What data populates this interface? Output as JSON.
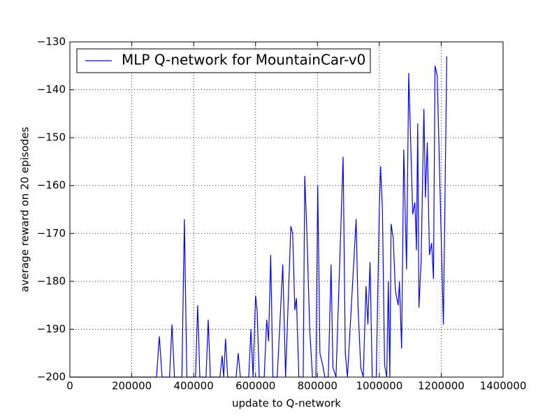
{
  "chart_data": {
    "type": "line",
    "xlabel": "update to Q-network",
    "ylabel": "average reward on 20 episodes",
    "xlim": [
      0,
      1400000
    ],
    "ylim": [
      -200,
      -130
    ],
    "xticks": [
      0,
      200000,
      400000,
      600000,
      800000,
      1000000,
      1200000,
      1400000
    ],
    "yticks": [
      {
        "value": -200,
        "label": "−200"
      },
      {
        "value": -190,
        "label": "−190"
      },
      {
        "value": -180,
        "label": "−180"
      },
      {
        "value": -170,
        "label": "−170"
      },
      {
        "value": -160,
        "label": "−160"
      },
      {
        "value": -150,
        "label": "−150"
      },
      {
        "value": -140,
        "label": "−140"
      },
      {
        "value": -130,
        "label": "−130"
      }
    ],
    "grid": true,
    "legend": "upper left",
    "x": [
      0,
      280000,
      289000,
      298000,
      322000,
      330000,
      338000,
      362000,
      370000,
      378000,
      406000,
      413000,
      420000,
      440000,
      447000,
      454000,
      485000,
      492000,
      497000,
      503000,
      510000,
      537000,
      544000,
      551000,
      578000,
      585000,
      592000,
      600000,
      605000,
      612000,
      628000,
      636000,
      642000,
      649000,
      656000,
      670000,
      677000,
      688000,
      697000,
      714000,
      720000,
      727000,
      732000,
      740000,
      754000,
      759000,
      766000,
      775000,
      784000,
      795000,
      801000,
      808000,
      817000,
      824000,
      835000,
      844000,
      850000,
      860000,
      883000,
      890000,
      897000,
      925000,
      931000,
      940000,
      948000,
      957000,
      963000,
      970000,
      977000,
      990000,
      1000000,
      1004000,
      1010000,
      1017000,
      1024000,
      1029000,
      1034000,
      1038000,
      1045000,
      1052000,
      1061000,
      1065000,
      1072000,
      1079000,
      1088000,
      1095000,
      1101000,
      1108000,
      1115000,
      1120000,
      1124000,
      1128000,
      1135000,
      1144000,
      1149000,
      1155000,
      1162000,
      1169000,
      1175000,
      1180000,
      1187000,
      1194000,
      1200000,
      1207000,
      1218000
    ],
    "series": [
      {
        "name": "MLP Q-network for MountainCar-v0",
        "color": "#0000ff",
        "values": [
          -200,
          -200,
          -191.5,
          -200,
          -200,
          -189,
          -200,
          -200,
          -167,
          -200,
          -200,
          -185,
          -200,
          -200,
          -188,
          -200,
          -200,
          -195.5,
          -200,
          -192,
          -200,
          -200,
          -195,
          -200,
          -200,
          -190,
          -200,
          -183,
          -186,
          -200,
          -200,
          -188,
          -192.5,
          -174.5,
          -200,
          -200,
          -191,
          -176.5,
          -200,
          -168.5,
          -170,
          -186,
          -183.5,
          -200,
          -200,
          -158,
          -170,
          -190,
          -200,
          -200,
          -160,
          -195,
          -197.5,
          -200,
          -200,
          -176.5,
          -198,
          -200,
          -154,
          -195,
          -200,
          -167,
          -185,
          -198,
          -200,
          -181,
          -189,
          -176,
          -200,
          -200,
          -165,
          -156,
          -165,
          -197.5,
          -200,
          -180,
          -200,
          -168,
          -171,
          -182,
          -185,
          -180,
          -194,
          -152.5,
          -177.5,
          -136.5,
          -150,
          -166,
          -163.5,
          -173.5,
          -147,
          -185.5,
          -176,
          -144,
          -162.5,
          -151,
          -174.5,
          -172,
          -179.5,
          -135,
          -137,
          -155,
          -171,
          -189,
          -133
        ]
      }
    ]
  }
}
